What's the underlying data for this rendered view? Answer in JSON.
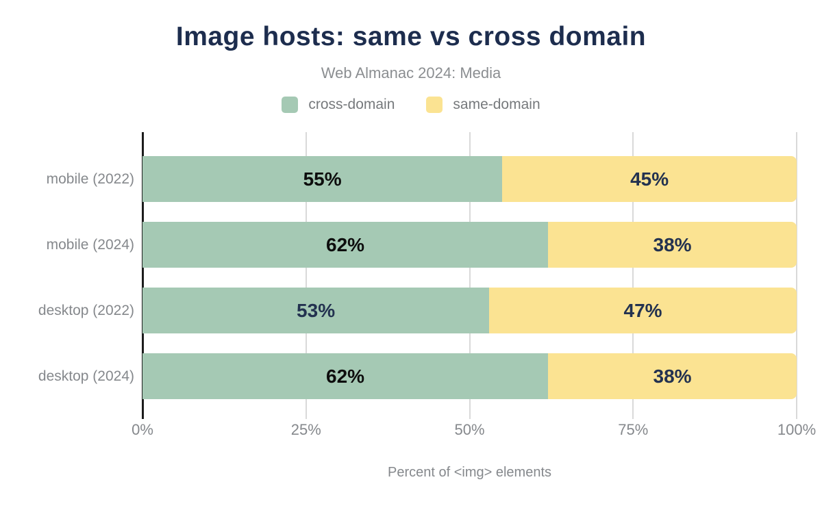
{
  "title": "Image hosts: same vs cross domain",
  "subtitle": "Web Almanac 2024: Media",
  "legend": [
    {
      "label": "cross-domain",
      "color": "#a5c9b4"
    },
    {
      "label": "same-domain",
      "color": "#fbe392"
    }
  ],
  "colors": {
    "title_navy": "#1d2d4e",
    "cross_domain_green": "#a5c9b4",
    "same_domain_yellow": "#fbe392",
    "gridline_gray": "#d9d9d9",
    "axis_black": "#1c1c1c",
    "muted_text_gray": "#85888c"
  },
  "chart_data": {
    "type": "bar",
    "orientation": "horizontal",
    "stacked": true,
    "title": "Image hosts: same vs cross domain",
    "subtitle": "Web Almanac 2024: Media",
    "xlabel": "Percent of <img> elements",
    "ylabel": "",
    "xlim": [
      0,
      100
    ],
    "x_ticks": [
      {
        "label": "0%",
        "value": 0
      },
      {
        "label": "25%",
        "value": 25
      },
      {
        "label": "50%",
        "value": 50
      },
      {
        "label": "75%",
        "value": 75
      },
      {
        "label": "100%",
        "value": 100
      }
    ],
    "gridlines": [
      25,
      50,
      75,
      100
    ],
    "legend_position": "top",
    "categories": [
      "mobile (2022)",
      "mobile (2024)",
      "desktop (2022)",
      "desktop (2024)"
    ],
    "series": [
      {
        "name": "cross-domain",
        "color": "#a5c9b4",
        "values": [
          55,
          62,
          53,
          62
        ],
        "data_labels": [
          "55%",
          "62%",
          "53%",
          "62%"
        ],
        "label_colors": [
          "#0d0d0d",
          "#0d0d0d",
          "#233250",
          "#0d0d0d"
        ]
      },
      {
        "name": "same-domain",
        "color": "#fbe392",
        "values": [
          45,
          38,
          47,
          38
        ],
        "data_labels": [
          "45%",
          "38%",
          "47%",
          "38%"
        ],
        "label_colors": [
          "#233250",
          "#233250",
          "#233250",
          "#233250"
        ]
      }
    ]
  }
}
